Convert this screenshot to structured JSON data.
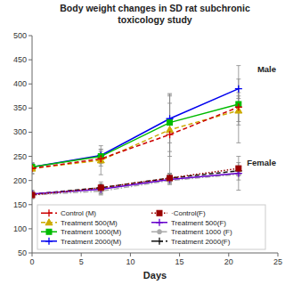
{
  "chart_data": {
    "type": "line",
    "title": "Body weight changes in SD rat subchronic\ntoxicology study",
    "xlabel": "Days",
    "x": [
      0,
      7,
      14,
      21
    ],
    "xlim": [
      0,
      25
    ],
    "xticks": [
      0,
      5,
      10,
      15,
      20,
      25
    ],
    "ylim": [
      50,
      500
    ],
    "yticks": [
      50,
      100,
      150,
      200,
      250,
      300,
      350,
      400,
      450,
      500
    ],
    "grid": false,
    "legend": "lower left",
    "annotations": [
      "Male",
      "Female"
    ],
    "series": [
      {
        "name": "Control (M)",
        "color": "#cc0000",
        "line_style": "dashed",
        "marker": "plus",
        "values": [
          225,
          245,
          295,
          352
        ],
        "errors": [
          12,
          15,
          80,
          30
        ]
      },
      {
        "name": "Treatment 500(M)",
        "color": "#ccaa00",
        "line_style": "dashed",
        "marker": "triangle",
        "values": [
          225,
          242,
          305,
          345
        ],
        "errors": [
          10,
          30,
          55,
          30
        ]
      },
      {
        "name": "Treatment 1000(M)",
        "color": "#00bb00",
        "line_style": "solid",
        "marker": "square",
        "values": [
          228,
          250,
          320,
          358
        ],
        "errors": [
          8,
          15,
          60,
          80
        ]
      },
      {
        "name": "Treatment 2000(M)",
        "color": "#0000ee",
        "line_style": "solid",
        "marker": "plus",
        "values": [
          228,
          252,
          328,
          390
        ],
        "errors": [
          8,
          12,
          50,
          20
        ]
      },
      {
        "name": "·Control(F)",
        "color": "#990000",
        "line_style": "dotted",
        "marker": "square",
        "values": [
          170,
          185,
          205,
          225
        ],
        "errors": [
          8,
          12,
          10,
          12
        ]
      },
      {
        "name": "Treatment 500(F)",
        "color": "#6600cc",
        "line_style": "solid",
        "marker": "plus",
        "values": [
          172,
          182,
          202,
          215
        ],
        "errors": [
          8,
          10,
          10,
          35
        ]
      },
      {
        "name": "Treatment 1000 (F)",
        "color": "#aaaaaa",
        "line_style": "dashdot",
        "marker": "circle",
        "values": [
          170,
          178,
          200,
          213
        ],
        "errors": [
          6,
          8,
          8,
          12
        ]
      },
      {
        "name": "Treatment 2000(F)",
        "color": "#111111",
        "line_style": "dashed",
        "marker": "plus",
        "values": [
          172,
          185,
          205,
          220
        ],
        "errors": [
          6,
          8,
          8,
          10
        ]
      }
    ]
  }
}
